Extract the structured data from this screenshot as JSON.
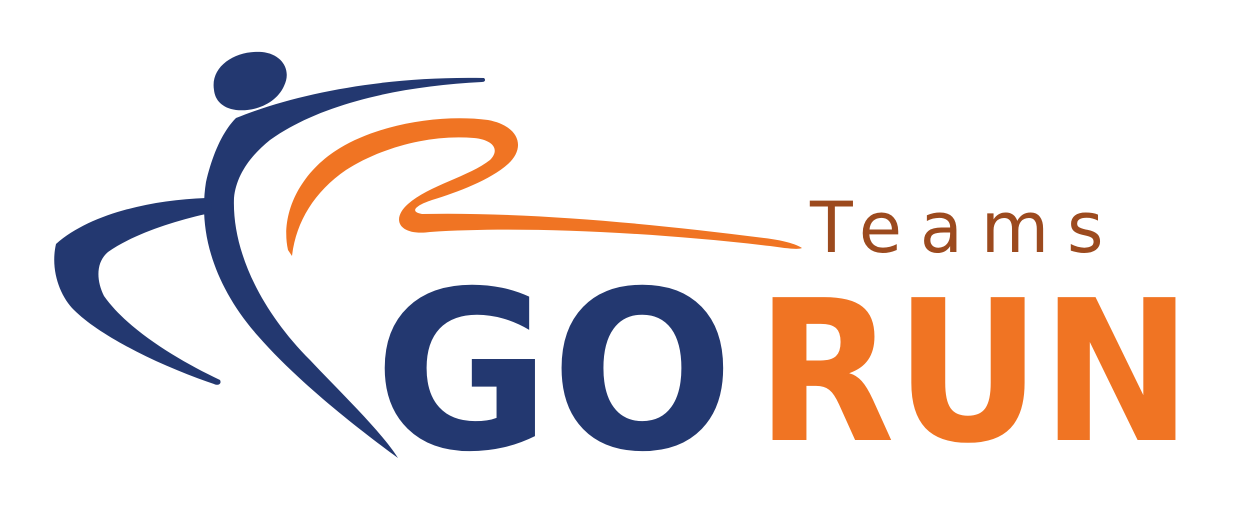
{
  "logo": {
    "teams_text": "Teams",
    "go_text": "GO",
    "run_text": "RUN"
  },
  "colors": {
    "navy": "#233870",
    "orange": "#F07423",
    "brown": "#9C4A1E",
    "background": "#FFFFFF"
  }
}
